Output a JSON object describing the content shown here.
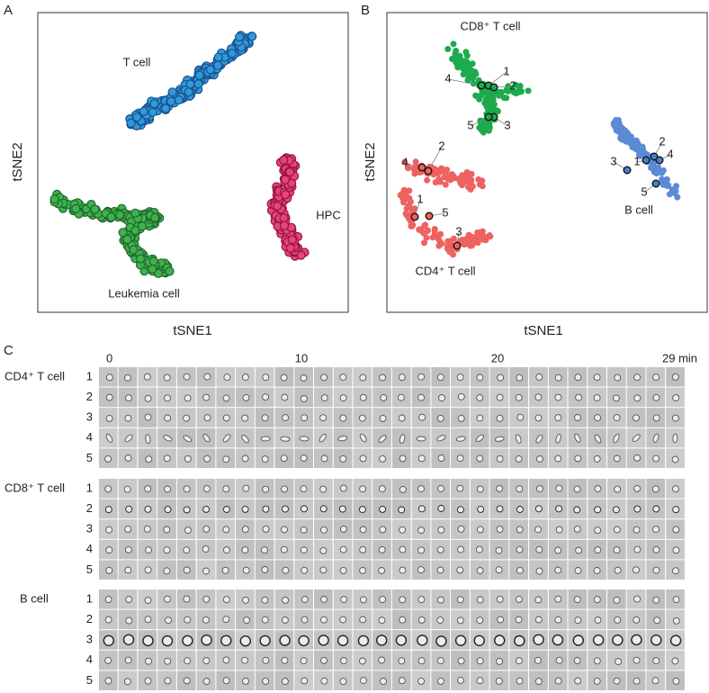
{
  "panels": {
    "A": {
      "label": "A",
      "x_label": "tSNE1",
      "y_label": "tSNE2",
      "clusters": [
        "T cell",
        "Leukemia cell",
        "HPC"
      ]
    },
    "B": {
      "label": "B",
      "x_label": "tSNE1",
      "y_label": "tSNE2",
      "clusters": [
        {
          "name": "CD8⁺ T cell",
          "points": [
            "1",
            "2",
            "3",
            "4",
            "5"
          ]
        },
        {
          "name": "CD4⁺ T cell",
          "points": [
            "1",
            "2",
            "3",
            "4",
            "5"
          ]
        },
        {
          "name": "B cell",
          "points": [
            "1",
            "2",
            "3",
            "4",
            "5"
          ]
        }
      ]
    },
    "C": {
      "label": "C",
      "time_labels": [
        "0",
        "10",
        "20",
        "29 min"
      ],
      "groups": [
        {
          "name": "CD4⁺ T cell",
          "rows": [
            "1",
            "2",
            "3",
            "4",
            "5"
          ]
        },
        {
          "name": "CD8⁺ T cell",
          "rows": [
            "1",
            "2",
            "3",
            "4",
            "5"
          ]
        },
        {
          "name": "B cell",
          "rows": [
            "1",
            "2",
            "3",
            "4",
            "5"
          ]
        }
      ]
    }
  }
}
